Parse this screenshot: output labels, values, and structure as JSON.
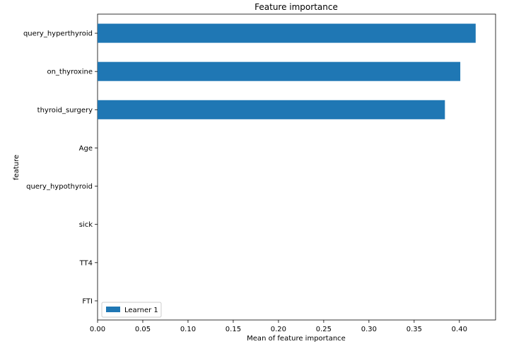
{
  "chart_data": {
    "type": "bar",
    "orientation": "horizontal",
    "title": "Feature importance",
    "xlabel": "Mean of feature importance",
    "ylabel": "feature",
    "categories": [
      "query_hyperthyroid",
      "on_thyroxine",
      "thyroid_surgery",
      "Age",
      "query_hypothyroid",
      "sick",
      "TT4",
      "FTI"
    ],
    "series": [
      {
        "name": "Learner 1",
        "values": [
          0.418,
          0.401,
          0.384,
          0,
          0,
          0,
          0,
          0
        ]
      }
    ],
    "xlim": [
      0,
      0.44
    ],
    "xticks": [
      0.0,
      0.05,
      0.1,
      0.15,
      0.2,
      0.25,
      0.3,
      0.35,
      0.4
    ],
    "xtick_labels": [
      "0.00",
      "0.05",
      "0.10",
      "0.15",
      "0.20",
      "0.25",
      "0.30",
      "0.35",
      "0.40"
    ],
    "grid": false,
    "legend_position": "lower-left",
    "colors": {
      "bar": "#1f77b4",
      "axis": "#000000",
      "legend_border": "#cccccc"
    }
  }
}
